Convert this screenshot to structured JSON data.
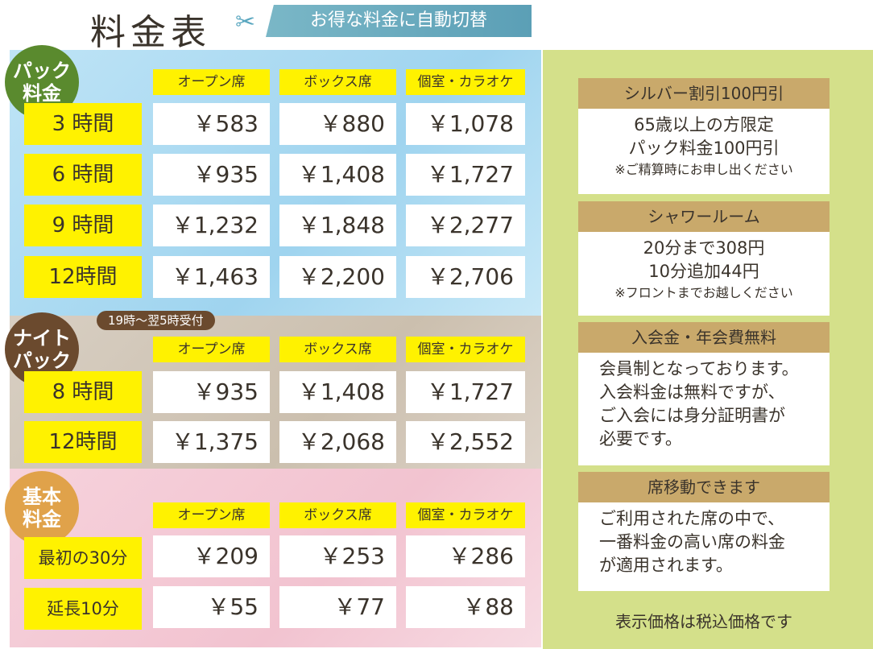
{
  "header": {
    "title": "料金表",
    "banner": "お得な料金に自動切替"
  },
  "columns": [
    "オープン席",
    "ボックス席",
    "個室・カラオケ"
  ],
  "pack": {
    "badge": [
      "パック",
      "料金"
    ],
    "rows": [
      {
        "label": "3 時間",
        "prices": [
          "￥583",
          "￥880",
          "￥1,078"
        ]
      },
      {
        "label": "6 時間",
        "prices": [
          "￥935",
          "￥1,408",
          "￥1,727"
        ]
      },
      {
        "label": "9 時間",
        "prices": [
          "￥1,232",
          "￥1,848",
          "￥2,277"
        ]
      },
      {
        "label": "12時間",
        "prices": [
          "￥1,463",
          "￥2,200",
          "￥2,706"
        ]
      }
    ]
  },
  "night": {
    "badge": [
      "ナイト",
      "パック"
    ],
    "note": "19時～翌5時受付",
    "rows": [
      {
        "label": "8 時間",
        "prices": [
          "￥935",
          "￥1,408",
          "￥1,727"
        ]
      },
      {
        "label": "12時間",
        "prices": [
          "￥1,375",
          "￥2,068",
          "￥2,552"
        ]
      }
    ]
  },
  "basic": {
    "badge": [
      "基本",
      "料金"
    ],
    "rows": [
      {
        "label": "最初の30分",
        "prices": [
          "￥209",
          "￥253",
          "￥286"
        ]
      },
      {
        "label": "延長10分",
        "prices": [
          "￥55",
          "￥77",
          "￥88"
        ]
      }
    ]
  },
  "info": {
    "silver": {
      "heading": "シルバー割引100円引",
      "lines": [
        "65歳以上の方限定",
        "パック料金100円引"
      ],
      "note": "※ご精算時にお申し出ください"
    },
    "shower": {
      "heading": "シャワールーム",
      "lines": [
        "20分まで308円",
        "10分追加44円"
      ],
      "note": "※フロントまでお越しください"
    },
    "membership": {
      "heading": "入会金・年会費無料",
      "lines": [
        "会員制となっております。",
        "入会料金は無料ですが、",
        "ご入会には身分証明書が",
        "必要です。"
      ]
    },
    "seat": {
      "heading": "席移動できます",
      "lines": [
        "ご利用された席の中で、",
        "一番料金の高い席の料金",
        "が適用されます。"
      ]
    },
    "footer": "表示価格は税込価格です"
  }
}
